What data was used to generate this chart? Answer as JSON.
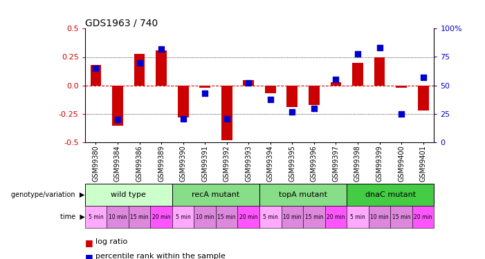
{
  "title": "GDS1963 / 740",
  "samples": [
    "GSM99380",
    "GSM99384",
    "GSM99386",
    "GSM99389",
    "GSM99390",
    "GSM99391",
    "GSM99392",
    "GSM99393",
    "GSM99394",
    "GSM99395",
    "GSM99396",
    "GSM99397",
    "GSM99398",
    "GSM99399",
    "GSM99400",
    "GSM99401"
  ],
  "log_ratio": [
    0.18,
    -0.35,
    0.28,
    0.31,
    -0.28,
    -0.02,
    -0.48,
    0.05,
    -0.07,
    -0.19,
    -0.17,
    0.03,
    0.2,
    0.25,
    -0.02,
    -0.22
  ],
  "pct_rank": [
    65,
    20,
    70,
    82,
    21,
    43,
    21,
    52,
    38,
    27,
    30,
    55,
    78,
    83,
    25,
    57
  ],
  "ylim_left": [
    -0.5,
    0.5
  ],
  "ylim_right": [
    0,
    100
  ],
  "yticks_left": [
    -0.5,
    -0.25,
    0.0,
    0.25,
    0.5
  ],
  "yticks_right": [
    0,
    25,
    50,
    75,
    100
  ],
  "hlines": [
    -0.25,
    0.0,
    0.25
  ],
  "bar_color": "#cc0000",
  "dot_color": "#0000cc",
  "zero_line_color": "#cc0000",
  "bg_color": "#ffffff",
  "genotype_groups": [
    {
      "label": "wild type",
      "start": 0,
      "end": 3,
      "color": "#ccffcc"
    },
    {
      "label": "recA mutant",
      "start": 4,
      "end": 7,
      "color": "#88dd88"
    },
    {
      "label": "topA mutant",
      "start": 8,
      "end": 11,
      "color": "#88dd88"
    },
    {
      "label": "dnaC mutant",
      "start": 12,
      "end": 15,
      "color": "#44cc44"
    }
  ],
  "time_labels": [
    "5 min",
    "10 min",
    "15 min",
    "20 min",
    "5 min",
    "10 min",
    "15 min",
    "20 min",
    "5 min",
    "10 min",
    "15 min",
    "20 min",
    "5 min",
    "10 min",
    "15 min",
    "20 min"
  ],
  "time_colors": [
    "#ffaaff",
    "#dd88dd",
    "#dd88dd",
    "#ff55ff",
    "#ffaaff",
    "#dd88dd",
    "#dd88dd",
    "#ff55ff",
    "#ffaaff",
    "#dd88dd",
    "#dd88dd",
    "#ff55ff",
    "#ffaaff",
    "#dd88dd",
    "#dd88dd",
    "#ff55ff"
  ],
  "bar_width": 0.5,
  "dot_size": 28
}
